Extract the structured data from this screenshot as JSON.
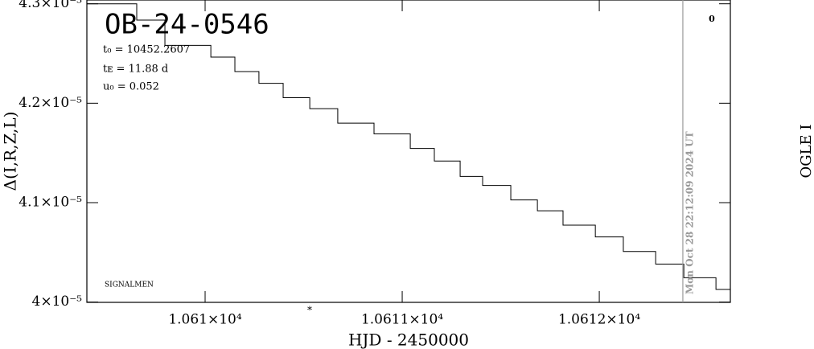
{
  "chart_data": {
    "type": "line",
    "title": "OB-24-0546",
    "annotations": [
      "t₀ = 10452.2607",
      "tᴇ = 11.88 d",
      "u₀ = 0.052",
      "SIGNALMEN",
      "0",
      "*"
    ],
    "x_label": "HJD - 2450000",
    "y_label": "Δ(I,R,Z,L)",
    "right_label": "OGLE I",
    "marker": {
      "x": 10612.424,
      "label": "Mon Oct 28 22:12:09 2024 UT",
      "color": "#999999"
    },
    "xlim": [
      10609.4,
      10612.665
    ],
    "ylim": [
      3.9997e-05,
      4.3038e-05
    ],
    "xticks": [
      {
        "value": 10610,
        "label": "1.061×10⁴"
      },
      {
        "value": 10611,
        "label": "1.0611×10⁴"
      },
      {
        "value": 10612,
        "label": "1.0612×10⁴"
      }
    ],
    "yticks": [
      {
        "value": 4e-05,
        "label": "4×10⁻⁵"
      },
      {
        "value": 4.1e-05,
        "label": "4.1×10⁻⁵"
      },
      {
        "value": 4.2e-05,
        "label": "4.2×10⁻⁵"
      },
      {
        "value": 4.3e-05,
        "label": "4.3×10⁻⁵"
      }
    ],
    "series": [
      {
        "color": "#000000",
        "x": [
          10609.4,
          10609.653,
          10609.653,
          10609.796,
          10609.796,
          10610.029,
          10610.029,
          10610.151,
          10610.151,
          10610.273,
          10610.273,
          10610.396,
          10610.396,
          10610.531,
          10610.531,
          10610.673,
          10610.673,
          10610.857,
          10610.857,
          10611.041,
          10611.041,
          10611.163,
          10611.163,
          10611.294,
          10611.294,
          10611.408,
          10611.408,
          10611.551,
          10611.551,
          10611.686,
          10611.686,
          10611.816,
          10611.816,
          10611.98,
          10611.98,
          10612.122,
          10612.122,
          10612.286,
          10612.286,
          10612.429,
          10612.429,
          10612.592,
          10612.592,
          10612.665
        ],
        "values": [
          4.3e-05,
          4.3e-05,
          4.2836e-05,
          4.2836e-05,
          4.2582e-05,
          4.2582e-05,
          4.2464e-05,
          4.2464e-05,
          4.2318e-05,
          4.2318e-05,
          4.22e-05,
          4.22e-05,
          4.2055e-05,
          4.2055e-05,
          4.1945e-05,
          4.1945e-05,
          4.18e-05,
          4.18e-05,
          4.1691e-05,
          4.1691e-05,
          4.1545e-05,
          4.1545e-05,
          4.1418e-05,
          4.1418e-05,
          4.1264e-05,
          4.1264e-05,
          4.1173e-05,
          4.1173e-05,
          4.1027e-05,
          4.1027e-05,
          4.0918e-05,
          4.0918e-05,
          4.0773e-05,
          4.0773e-05,
          4.0655e-05,
          4.0655e-05,
          4.0509e-05,
          4.0509e-05,
          4.0382e-05,
          4.0382e-05,
          4.0245e-05,
          4.0245e-05,
          4.0127e-05,
          4.0127e-05
        ]
      }
    ]
  }
}
